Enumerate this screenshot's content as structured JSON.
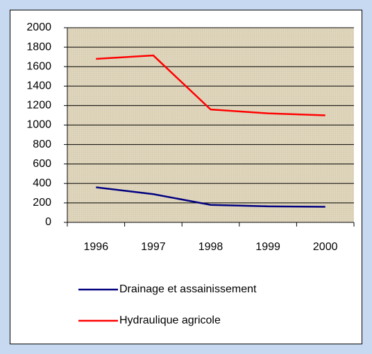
{
  "chart_data": {
    "type": "line",
    "categories": [
      "1996",
      "1997",
      "1998",
      "1999",
      "2000"
    ],
    "series": [
      {
        "name": "Drainage et assainissement",
        "color": "#000080",
        "values": [
          360,
          290,
          180,
          165,
          160
        ]
      },
      {
        "name": "Hydraulique agricole",
        "color": "#ff0000",
        "values": [
          1680,
          1715,
          1160,
          1120,
          1100
        ]
      }
    ],
    "ylim": [
      0,
      2000
    ],
    "yticks": [
      0,
      200,
      400,
      600,
      800,
      1000,
      1200,
      1400,
      1600,
      1800,
      2000
    ],
    "grid": true
  }
}
